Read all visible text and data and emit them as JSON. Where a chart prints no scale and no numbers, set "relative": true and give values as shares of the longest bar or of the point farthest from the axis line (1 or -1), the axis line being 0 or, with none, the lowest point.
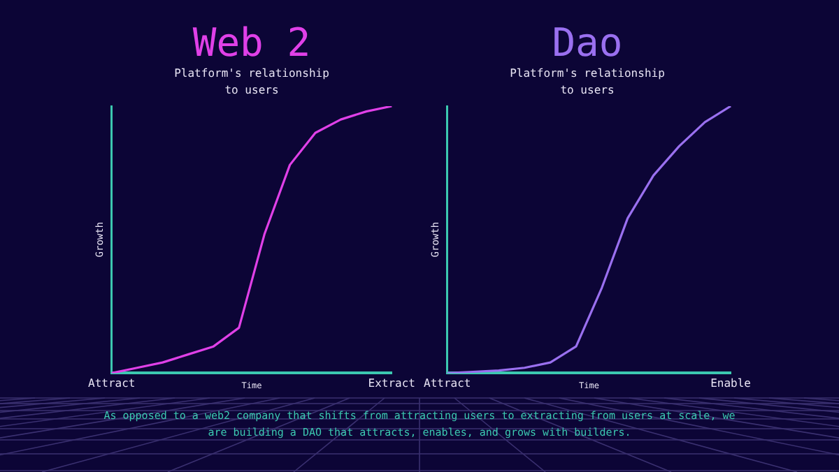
{
  "chart_data": [
    {
      "type": "line",
      "title": "Web 2",
      "subtitle": "Platform's relationship to users",
      "xlabel": "Time",
      "ylabel": "Growth",
      "relative": true,
      "legend": false,
      "grid": false,
      "marker": "none",
      "categories": [
        "Attract",
        null,
        null,
        null,
        null,
        null,
        null,
        null,
        null,
        null,
        null,
        "Extract"
      ],
      "series": [
        {
          "color": "#e040e8",
          "values": [
            0,
            0.02,
            0.04,
            0.07,
            0.1,
            0.17,
            0.52,
            0.78,
            0.9,
            0.95,
            0.98,
            1
          ]
        }
      ]
    },
    {
      "type": "line",
      "title": "Dao",
      "subtitle": "Platform's relationship to users",
      "xlabel": "Time",
      "ylabel": "Growth",
      "relative": true,
      "legend": false,
      "grid": false,
      "marker": "none",
      "categories": [
        "Attract",
        null,
        null,
        null,
        null,
        null,
        null,
        null,
        null,
        null,
        null,
        "Enable"
      ],
      "series": [
        {
          "color": "#9a70f0",
          "values": [
            0,
            0.005,
            0.01,
            0.02,
            0.04,
            0.1,
            0.32,
            0.58,
            0.74,
            0.85,
            0.94,
            1
          ]
        }
      ],
      "annotations": [
        "As opposed to a web2 company that shifts from attracting users to extracting from users at scale, we are building a DAO that attracts, enables, and grows with builders."
      ]
    }
  ]
}
